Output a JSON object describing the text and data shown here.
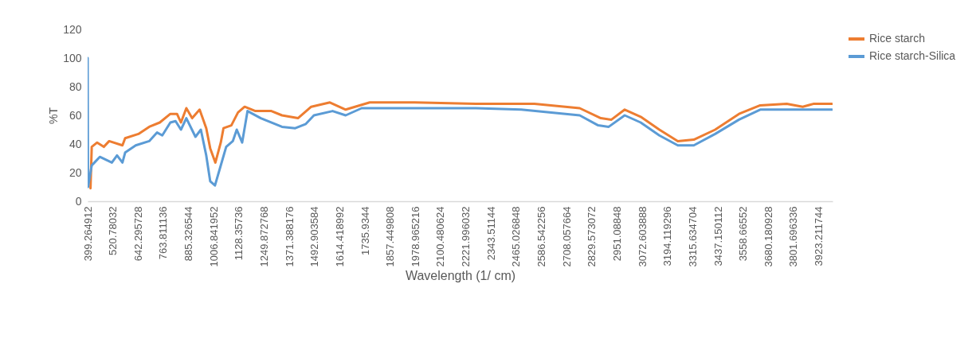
{
  "chart_data": {
    "type": "line",
    "xlabel": "Wavelength (1/ cm)",
    "ylabel": "%T",
    "legend": "right",
    "grid": false,
    "line_style": "solid",
    "marker": "none",
    "xlim": [
      399.264912,
      3990
    ],
    "ylim": [
      0,
      120
    ],
    "yticks": [
      0,
      20,
      40,
      60,
      80,
      100,
      120
    ],
    "xticks": [
      399.264912,
      520.78032,
      642.295728,
      763.811136,
      885.326544,
      1006.841952,
      1128.35736,
      1249.872768,
      1371.388176,
      1492.903584,
      1614.418992,
      1735.9344,
      1857.449808,
      1978.965216,
      2100.480624,
      2221.996032,
      2343.51144,
      2465.026848,
      2586.542256,
      2708.057664,
      2829.573072,
      2951.08848,
      3072.603888,
      3194.119296,
      3315.634704,
      3437.150112,
      3558.66552,
      3680.180928,
      3801.696336,
      3923.211744
    ],
    "series": [
      {
        "name": "Rice starch",
        "color": "#ed7d31",
        "x": [
          413,
          419,
          445,
          477,
          503,
          567,
          580,
          644,
          696,
          747,
          798,
          830,
          849,
          875,
          903,
          939,
          971,
          990,
          1015,
          1041,
          1054,
          1092,
          1124,
          1156,
          1208,
          1285,
          1336,
          1413,
          1477,
          1567,
          1643,
          1759,
          1976,
          2271,
          2553,
          2771,
          2873,
          2924,
          2988,
          3065,
          3155,
          3244,
          3321,
          3424,
          3539,
          3641,
          3769,
          3846,
          3897,
          3987
        ],
        "values": [
          9,
          38,
          41,
          38,
          42,
          39,
          44,
          47,
          52,
          55,
          61,
          61,
          55,
          65,
          58,
          64,
          51,
          37,
          27,
          41,
          51,
          53,
          62,
          66,
          63,
          63,
          60,
          58,
          66,
          69,
          64,
          69,
          69,
          68,
          68,
          65,
          58,
          57,
          64,
          59,
          50,
          42,
          43,
          50,
          61,
          67,
          68,
          66,
          68,
          68
        ]
      },
      {
        "name": "Rice starch-Silica",
        "color": "#5b9bd5",
        "x": [
          399.264912,
          401,
          419,
          432,
          458,
          516,
          541,
          567,
          580,
          631,
          696,
          734,
          759,
          798,
          823,
          849,
          875,
          919,
          945,
          971,
          990,
          1013,
          1041,
          1067,
          1099,
          1118,
          1144,
          1170,
          1234,
          1336,
          1400,
          1451,
          1490,
          1580,
          1643,
          1720,
          2271,
          2489,
          2771,
          2860,
          2911,
          2988,
          3065,
          3155,
          3244,
          3321,
          3424,
          3539,
          3641,
          3769,
          3987
        ],
        "values": [
          100,
          10,
          25,
          27,
          31,
          27,
          32,
          27,
          34,
          39,
          42,
          48,
          46,
          55,
          56,
          50,
          58,
          45,
          50,
          32,
          14,
          11,
          25,
          38,
          42,
          50,
          41,
          63,
          58,
          52,
          51,
          54,
          60,
          63,
          60,
          65,
          65,
          64,
          60,
          53,
          52,
          60,
          55,
          46,
          39,
          39,
          47,
          57,
          64,
          64,
          64
        ]
      }
    ]
  }
}
